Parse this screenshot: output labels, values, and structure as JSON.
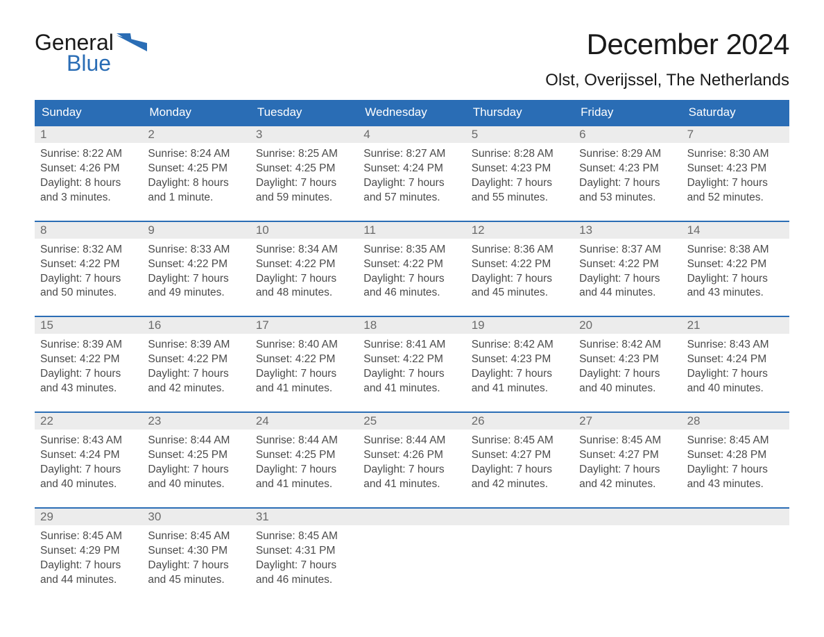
{
  "logo": {
    "word1": "General",
    "word2": "Blue"
  },
  "header": {
    "month_title": "December 2024",
    "location": "Olst, Overijssel, The Netherlands"
  },
  "colors": {
    "header_bg": "#2a6db5",
    "header_text": "#ffffff",
    "row_divider": "#2a6db5",
    "daynum_bg": "#ececec",
    "daynum_text": "#6a6a6a",
    "body_text": "#4a4a4a",
    "page_bg": "#ffffff",
    "logo_accent": "#2a6db5"
  },
  "typography": {
    "month_title_pt": 42,
    "location_pt": 24,
    "weekday_pt": 17,
    "daynum_pt": 17,
    "body_pt": 15.5,
    "font_family": "Arial"
  },
  "layout": {
    "columns": 7,
    "weeks": 5,
    "cell_body_lines": 4
  },
  "calendar": {
    "weekdays": [
      "Sunday",
      "Monday",
      "Tuesday",
      "Wednesday",
      "Thursday",
      "Friday",
      "Saturday"
    ],
    "labels": {
      "sunrise": "Sunrise:",
      "sunset": "Sunset:",
      "daylight": "Daylight:"
    },
    "weeks": [
      [
        {
          "day": "1",
          "sunrise": "8:22 AM",
          "sunset": "4:26 PM",
          "daylight1": "8 hours",
          "daylight2": "and 3 minutes."
        },
        {
          "day": "2",
          "sunrise": "8:24 AM",
          "sunset": "4:25 PM",
          "daylight1": "8 hours",
          "daylight2": "and 1 minute."
        },
        {
          "day": "3",
          "sunrise": "8:25 AM",
          "sunset": "4:25 PM",
          "daylight1": "7 hours",
          "daylight2": "and 59 minutes."
        },
        {
          "day": "4",
          "sunrise": "8:27 AM",
          "sunset": "4:24 PM",
          "daylight1": "7 hours",
          "daylight2": "and 57 minutes."
        },
        {
          "day": "5",
          "sunrise": "8:28 AM",
          "sunset": "4:23 PM",
          "daylight1": "7 hours",
          "daylight2": "and 55 minutes."
        },
        {
          "day": "6",
          "sunrise": "8:29 AM",
          "sunset": "4:23 PM",
          "daylight1": "7 hours",
          "daylight2": "and 53 minutes."
        },
        {
          "day": "7",
          "sunrise": "8:30 AM",
          "sunset": "4:23 PM",
          "daylight1": "7 hours",
          "daylight2": "and 52 minutes."
        }
      ],
      [
        {
          "day": "8",
          "sunrise": "8:32 AM",
          "sunset": "4:22 PM",
          "daylight1": "7 hours",
          "daylight2": "and 50 minutes."
        },
        {
          "day": "9",
          "sunrise": "8:33 AM",
          "sunset": "4:22 PM",
          "daylight1": "7 hours",
          "daylight2": "and 49 minutes."
        },
        {
          "day": "10",
          "sunrise": "8:34 AM",
          "sunset": "4:22 PM",
          "daylight1": "7 hours",
          "daylight2": "and 48 minutes."
        },
        {
          "day": "11",
          "sunrise": "8:35 AM",
          "sunset": "4:22 PM",
          "daylight1": "7 hours",
          "daylight2": "and 46 minutes."
        },
        {
          "day": "12",
          "sunrise": "8:36 AM",
          "sunset": "4:22 PM",
          "daylight1": "7 hours",
          "daylight2": "and 45 minutes."
        },
        {
          "day": "13",
          "sunrise": "8:37 AM",
          "sunset": "4:22 PM",
          "daylight1": "7 hours",
          "daylight2": "and 44 minutes."
        },
        {
          "day": "14",
          "sunrise": "8:38 AM",
          "sunset": "4:22 PM",
          "daylight1": "7 hours",
          "daylight2": "and 43 minutes."
        }
      ],
      [
        {
          "day": "15",
          "sunrise": "8:39 AM",
          "sunset": "4:22 PM",
          "daylight1": "7 hours",
          "daylight2": "and 43 minutes."
        },
        {
          "day": "16",
          "sunrise": "8:39 AM",
          "sunset": "4:22 PM",
          "daylight1": "7 hours",
          "daylight2": "and 42 minutes."
        },
        {
          "day": "17",
          "sunrise": "8:40 AM",
          "sunset": "4:22 PM",
          "daylight1": "7 hours",
          "daylight2": "and 41 minutes."
        },
        {
          "day": "18",
          "sunrise": "8:41 AM",
          "sunset": "4:22 PM",
          "daylight1": "7 hours",
          "daylight2": "and 41 minutes."
        },
        {
          "day": "19",
          "sunrise": "8:42 AM",
          "sunset": "4:23 PM",
          "daylight1": "7 hours",
          "daylight2": "and 41 minutes."
        },
        {
          "day": "20",
          "sunrise": "8:42 AM",
          "sunset": "4:23 PM",
          "daylight1": "7 hours",
          "daylight2": "and 40 minutes."
        },
        {
          "day": "21",
          "sunrise": "8:43 AM",
          "sunset": "4:24 PM",
          "daylight1": "7 hours",
          "daylight2": "and 40 minutes."
        }
      ],
      [
        {
          "day": "22",
          "sunrise": "8:43 AM",
          "sunset": "4:24 PM",
          "daylight1": "7 hours",
          "daylight2": "and 40 minutes."
        },
        {
          "day": "23",
          "sunrise": "8:44 AM",
          "sunset": "4:25 PM",
          "daylight1": "7 hours",
          "daylight2": "and 40 minutes."
        },
        {
          "day": "24",
          "sunrise": "8:44 AM",
          "sunset": "4:25 PM",
          "daylight1": "7 hours",
          "daylight2": "and 41 minutes."
        },
        {
          "day": "25",
          "sunrise": "8:44 AM",
          "sunset": "4:26 PM",
          "daylight1": "7 hours",
          "daylight2": "and 41 minutes."
        },
        {
          "day": "26",
          "sunrise": "8:45 AM",
          "sunset": "4:27 PM",
          "daylight1": "7 hours",
          "daylight2": "and 42 minutes."
        },
        {
          "day": "27",
          "sunrise": "8:45 AM",
          "sunset": "4:27 PM",
          "daylight1": "7 hours",
          "daylight2": "and 42 minutes."
        },
        {
          "day": "28",
          "sunrise": "8:45 AM",
          "sunset": "4:28 PM",
          "daylight1": "7 hours",
          "daylight2": "and 43 minutes."
        }
      ],
      [
        {
          "day": "29",
          "sunrise": "8:45 AM",
          "sunset": "4:29 PM",
          "daylight1": "7 hours",
          "daylight2": "and 44 minutes."
        },
        {
          "day": "30",
          "sunrise": "8:45 AM",
          "sunset": "4:30 PM",
          "daylight1": "7 hours",
          "daylight2": "and 45 minutes."
        },
        {
          "day": "31",
          "sunrise": "8:45 AM",
          "sunset": "4:31 PM",
          "daylight1": "7 hours",
          "daylight2": "and 46 minutes."
        },
        null,
        null,
        null,
        null
      ]
    ]
  }
}
